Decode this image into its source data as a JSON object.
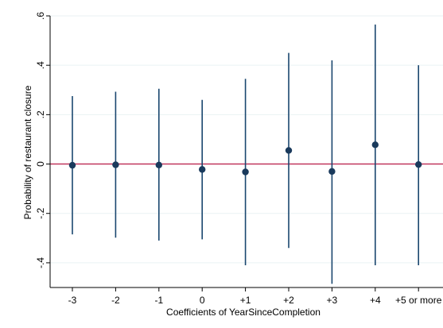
{
  "chart_data": {
    "type": "scatter",
    "subtype": "coefficient-plot-with-confidence-intervals",
    "categories": [
      "-3",
      "-2",
      "-1",
      "0",
      "+1",
      "+2",
      "+3",
      "+4",
      "+5 or more"
    ],
    "values": [
      -0.005,
      -0.003,
      -0.004,
      -0.022,
      -0.032,
      0.055,
      -0.03,
      0.078,
      -0.002
    ],
    "ci_low": [
      -0.285,
      -0.298,
      -0.31,
      -0.305,
      -0.41,
      -0.34,
      -0.485,
      -0.41,
      -0.41
    ],
    "ci_high": [
      0.275,
      0.293,
      0.305,
      0.26,
      0.345,
      0.45,
      0.42,
      0.565,
      0.4
    ],
    "xlabel": "Coefficients of YearSinceCompletion",
    "ylabel": "Probability of restaurant closure",
    "ylim": [
      -0.5,
      0.6
    ],
    "yticks": [
      -0.4,
      -0.2,
      0,
      0.2,
      0.4,
      0.6
    ],
    "ytick_labels": [
      "-.4",
      "-.2",
      "0",
      ".2",
      ".4",
      ".6"
    ],
    "reference_line": 0,
    "grid": true,
    "colors": {
      "marker": "#1a3a5c",
      "ci_line": "#1a476f",
      "reference_line": "#c0365e",
      "grid": "#eaf2f3",
      "axis": "#000000"
    }
  }
}
